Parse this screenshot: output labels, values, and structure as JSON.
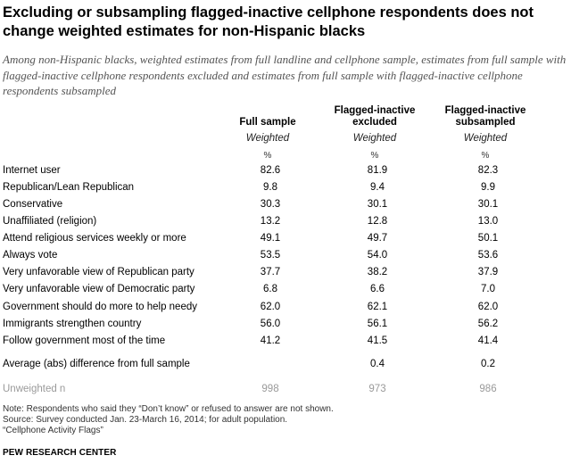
{
  "title": "Excluding or subsampling flagged-inactive cellphone respondents does not change weighted estimates for non-Hispanic blacks",
  "subtitle": "Among non-Hispanic blacks, weighted estimates from full landline and cellphone sample, estimates from full sample with flagged-inactive cellphone respondents excluded and estimates from full sample with flagged-inactive cellphone respondents subsampled",
  "columns": [
    {
      "line1": "",
      "line2": "Full sample",
      "sub": "Weighted",
      "unit": "%"
    },
    {
      "line1": "Flagged-inactive",
      "line2": "excluded",
      "sub": "Weighted",
      "unit": "%"
    },
    {
      "line1": "Flagged-inactive",
      "line2": "subsampled",
      "sub": "Weighted",
      "unit": "%"
    }
  ],
  "rows": [
    {
      "label": "Internet user",
      "values": [
        "82.6",
        "81.9",
        "82.3"
      ]
    },
    {
      "label": "Republican/Lean Republican",
      "values": [
        "9.8",
        "9.4",
        "9.9"
      ]
    },
    {
      "label": "Conservative",
      "values": [
        "30.3",
        "30.1",
        "30.1"
      ]
    },
    {
      "label": "Unaffiliated (religion)",
      "values": [
        "13.2",
        "12.8",
        "13.0"
      ]
    },
    {
      "label": "Attend religious services weekly or more",
      "values": [
        "49.1",
        "49.7",
        "50.1"
      ]
    },
    {
      "label": "Always vote",
      "values": [
        "53.5",
        "54.0",
        "53.6"
      ]
    },
    {
      "label": "Very unfavorable view of Republican party",
      "values": [
        "37.7",
        "38.2",
        "37.9"
      ]
    },
    {
      "label": "Very unfavorable view of Democratic party",
      "values": [
        "6.8",
        "6.6",
        "7.0"
      ]
    },
    {
      "label": "Government should do more to help needy",
      "values": [
        "62.0",
        "62.1",
        "62.0"
      ]
    },
    {
      "label": "Immigrants strengthen country",
      "values": [
        "56.0",
        "56.1",
        "56.2"
      ]
    },
    {
      "label": "Follow government most of the time",
      "values": [
        "41.2",
        "41.5",
        "41.4"
      ]
    }
  ],
  "avg_row": {
    "label": "Average (abs) difference from full sample",
    "values": [
      "",
      "0.4",
      "0.2"
    ]
  },
  "n_row": {
    "label": "Unweighted n",
    "values": [
      "998",
      "973",
      "986"
    ]
  },
  "notes": [
    "Note: Respondents who said they “Don’t know” or refused to answer are not shown.",
    "Source: Survey conducted Jan. 23-March 16, 2014; for adult population.",
    "“Cellphone Activity Flags”"
  ],
  "brand": "PEW RESEARCH CENTER"
}
